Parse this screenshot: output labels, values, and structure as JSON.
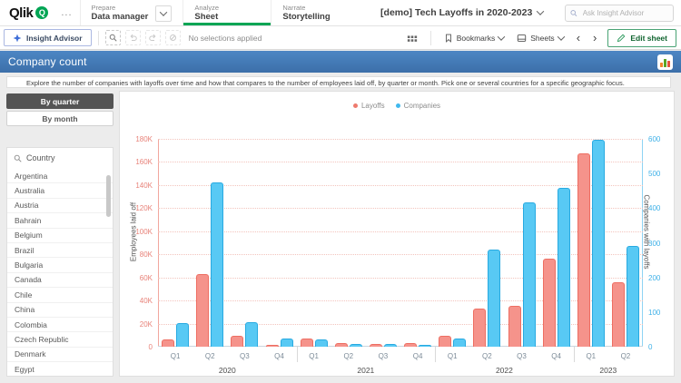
{
  "top_nav": {
    "logo_text": "Qlik",
    "logo_q": "Q",
    "more": "...",
    "sections": [
      {
        "eyebrow": "Prepare",
        "label": "Data manager"
      },
      {
        "eyebrow": "Analyze",
        "label": "Sheet"
      },
      {
        "eyebrow": "Narrate",
        "label": "Storytelling"
      }
    ],
    "app_title": "[demo] Tech Layoffs in 2020-2023",
    "search_placeholder": "Ask Insight Advisor"
  },
  "toolbar": {
    "insight_advisor_label": "Insight Advisor",
    "no_selections_text": "No selections applied",
    "bookmarks_label": "Bookmarks",
    "sheets_label": "Sheets",
    "prev_arrow": "‹",
    "next_arrow": "›",
    "edit_sheet_label": "Edit sheet"
  },
  "sheet": {
    "title": "Company count",
    "description": "Explore the number of companies with layoffs over time and how that compares to the number of employees laid off, by quarter or month. Pick one or several countries for a specific geographic focus."
  },
  "sidebar": {
    "by_quarter_label": "By quarter",
    "by_month_label": "By month",
    "country_header": "Country",
    "countries": [
      "Argentina",
      "Australia",
      "Austria",
      "Bahrain",
      "Belgium",
      "Brazil",
      "Bulgaria",
      "Canada",
      "Chile",
      "China",
      "Colombia",
      "Czech Republic",
      "Denmark",
      "Egypt"
    ]
  },
  "chart_data": {
    "type": "bar",
    "subtype": "dual-axis grouped bars by quarter",
    "legend": [
      {
        "name": "Layoffs",
        "color": "#ee7a6e"
      },
      {
        "name": "Companies",
        "color": "#41b9ee"
      }
    ],
    "year_groups": [
      {
        "year": "2020",
        "quarters": [
          "Q1",
          "Q2",
          "Q3",
          "Q4"
        ]
      },
      {
        "year": "2021",
        "quarters": [
          "Q1",
          "Q2",
          "Q3",
          "Q4"
        ]
      },
      {
        "year": "2022",
        "quarters": [
          "Q1",
          "Q2",
          "Q3",
          "Q4"
        ]
      },
      {
        "year": "2023",
        "quarters": [
          "Q1",
          "Q2"
        ]
      }
    ],
    "series": [
      {
        "name": "Layoffs",
        "axis": "left",
        "fill": "#f5938b",
        "stroke": "#ee6e62",
        "values": [
          6500,
          63000,
          9800,
          1600,
          7000,
          2900,
          2300,
          3400,
          9200,
          33000,
          35500,
          76000,
          167500,
          55500
        ]
      },
      {
        "name": "Companies",
        "axis": "right",
        "fill": "#58c9f4",
        "stroke": "#28aae1",
        "values": [
          67,
          473,
          70,
          24,
          21,
          7,
          7,
          6,
          23,
          281,
          417,
          458,
          598,
          292
        ]
      }
    ],
    "left_axis": {
      "label": "Employees laid off",
      "max": 180000,
      "ticks": [
        "0",
        "20K",
        "40K",
        "60K",
        "80K",
        "100K",
        "120K",
        "140K",
        "160K",
        "180K"
      ]
    },
    "right_axis": {
      "label": "Companies with layoffs",
      "max": 600,
      "ticks": [
        "0",
        "100",
        "200",
        "300",
        "400",
        "500",
        "600"
      ]
    },
    "grid": "horizontal dotted lines at left-axis ticks",
    "legend_position": "top-center"
  }
}
